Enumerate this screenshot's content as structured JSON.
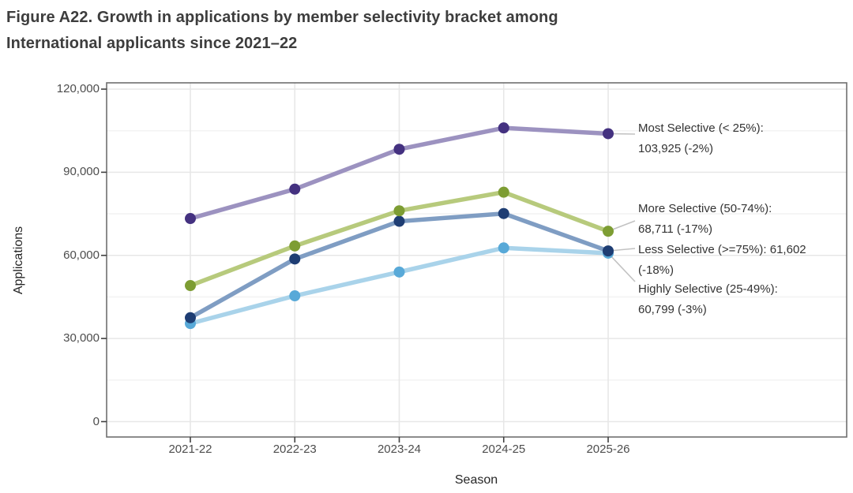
{
  "title": {
    "line1": "Figure A22. Growth in applications by member selectivity bracket among",
    "line2": "International applicants since 2021–22"
  },
  "chart_data": {
    "type": "line",
    "title": "Figure A22. Growth in applications by member selectivity bracket among International applicants since 2021–22",
    "xlabel": "Season",
    "ylabel": "Applications",
    "categories": [
      "2021-22",
      "2022-23",
      "2023-24",
      "2024-25",
      "2025-26"
    ],
    "ylim": [
      0,
      120000
    ],
    "y_ticks": [
      0,
      30000,
      60000,
      90000,
      120000
    ],
    "y_tick_labels": [
      "0",
      "30,000",
      "60,000",
      "90,000",
      "120,000"
    ],
    "y_minor_ticks": [
      15000,
      45000,
      75000,
      105000
    ],
    "grid": "horizontal major+minor, vertical major only",
    "legend_position": "right-side direct labels",
    "series": [
      {
        "name": "Most Selective (< 25%)",
        "values": [
          73300,
          83900,
          98300,
          106000,
          103925
        ],
        "final_value": 103925,
        "final_change": "-2%",
        "line_color": "#9c92c0",
        "marker_color": "#443180"
      },
      {
        "name": "More Selective (50-74%)",
        "values": [
          49100,
          63400,
          76100,
          82800,
          68711
        ],
        "final_value": 68711,
        "final_change": "-17%",
        "line_color": "#b7ca7c",
        "marker_color": "#7d9d33"
      },
      {
        "name": "Less Selective (>=75%)",
        "values": [
          37500,
          58700,
          72300,
          75100,
          61602
        ],
        "final_value": 61602,
        "final_change": "-18%",
        "line_color": "#7f9dc3",
        "marker_color": "#1e3d73"
      },
      {
        "name": "Highly Selective (25-49%)",
        "values": [
          35400,
          45400,
          54000,
          62700,
          60799
        ],
        "final_value": 60799,
        "final_change": "-3%",
        "line_color": "#a9d3ea",
        "marker_color": "#58a9d8"
      }
    ],
    "annotations": [
      {
        "id": "most-selective-label",
        "series": 0,
        "lines": [
          "Most Selective (< 25%):",
          "103,925 (-2%)"
        ]
      },
      {
        "id": "more-selective-label",
        "series": 1,
        "lines": [
          "More Selective (50-74%):",
          "68,711 (-17%)"
        ]
      },
      {
        "id": "less-selective-label",
        "series": 2,
        "lines": [
          "Less Selective (>=75%): 61,602",
          "(-18%)"
        ]
      },
      {
        "id": "highly-selective-label",
        "series": 3,
        "lines": [
          "Highly Selective (25-49%):",
          "60,799 (-3%)"
        ]
      }
    ],
    "colors": {
      "major_grid": "#e7e7e7",
      "minor_grid": "#f3f3f3",
      "panel_border": "#6f6f6f",
      "tick_mark": "#404040",
      "leader_line": "#c2c2c2"
    }
  }
}
